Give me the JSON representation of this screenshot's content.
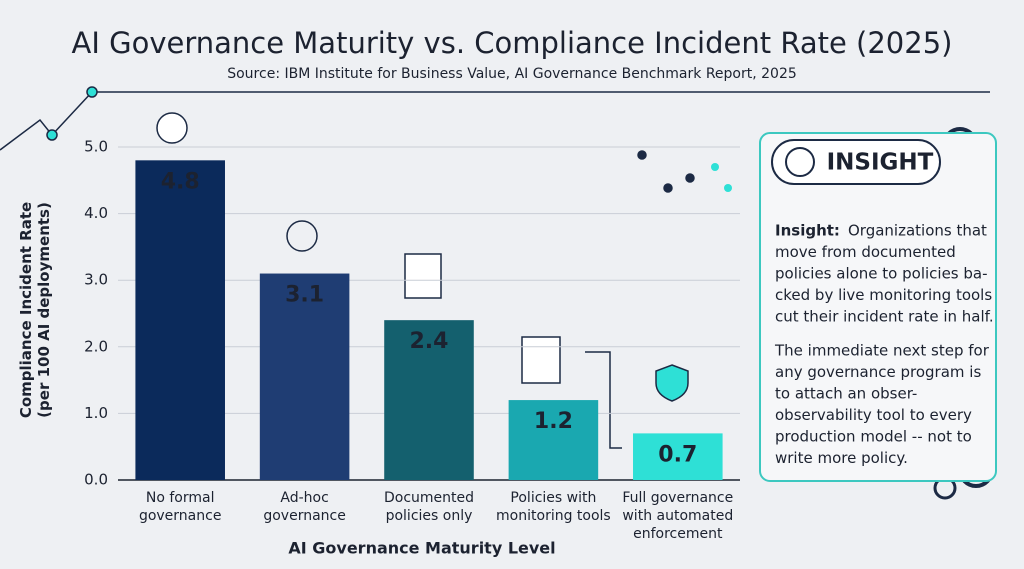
{
  "chart_data": {
    "type": "bar",
    "title": "AI Governance Maturity vs. Compliance Incident Rate (2025)",
    "subtitle": "Source: IBM Institute for Business Value, AI Governance Benchmark Report, 2025",
    "x_label": "AI Governance Maturity Level",
    "y_label": "Compliance Incident Rate\n(per 100 AI deployments)",
    "categories": [
      "No formal\ngovernance",
      "Ad-hoc\ngovernance",
      "Documented\npolicies only",
      "Policies with\nmonitoring tools",
      "Full governance\nwith automated\nenforcement"
    ],
    "values": [
      4.8,
      3.1,
      2.4,
      1.2,
      0.7
    ],
    "colors": [
      "#0b2a5b",
      "#1f3d73",
      "#14606e",
      "#1aa8b0",
      "#2ee0d6"
    ],
    "ylim": [
      0,
      5
    ],
    "yticks": [
      {
        "value": 0,
        "label": "0.0"
      },
      {
        "value": 1,
        "label": "1.0"
      },
      {
        "value": 2,
        "label": "2.0"
      },
      {
        "value": 3,
        "label": "3.0"
      },
      {
        "value": 4,
        "label": "4.0"
      },
      {
        "value": 5,
        "label": "5.0"
      }
    ],
    "grid": true,
    "insight": {
      "heading": "INSIGHT",
      "lead": "Insight:",
      "paragraph1": [
        "Organizations that",
        "move from documented",
        "policies alone to policies ba-",
        "cked by live monitoring tools",
        "cut their incident rate in half."
      ],
      "paragraph2": [
        "The immediate next step for",
        "any governance program is",
        "to attach an obser-",
        "observability tool to every",
        "production model -- not to",
        "write more policy."
      ]
    }
  }
}
